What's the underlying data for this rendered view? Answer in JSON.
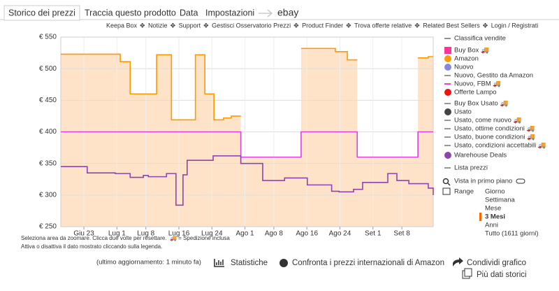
{
  "tabs": [
    "Storico dei prezzi",
    "Traccia questo prodotto",
    "Data",
    "Impostazioni",
    "ebay"
  ],
  "nav": [
    "Keepa Box",
    "Notizie",
    "Support",
    "Gestisci Osservatorio Prezzi",
    "Product Finder",
    "Trova offerte relative",
    "Related Best Sellers",
    "Login / Registrati"
  ],
  "chart_data": {
    "type": "line",
    "step": true,
    "grid": true,
    "area_color": "#ffe3c8",
    "xlim": [
      -5.6,
      84.6
    ],
    "xticks": [
      {
        "value": 0,
        "label": "Giu 23"
      },
      {
        "value": 8,
        "label": "Lug 1"
      },
      {
        "value": 15,
        "label": "Lug 8"
      },
      {
        "value": 23,
        "label": "Lug 16"
      },
      {
        "value": 31,
        "label": "Lug 24"
      },
      {
        "value": 39,
        "label": "Ago 1"
      },
      {
        "value": 46,
        "label": "Ago 8"
      },
      {
        "value": 54,
        "label": "Ago 16"
      },
      {
        "value": 62,
        "label": "Ago 24"
      },
      {
        "value": 70,
        "label": "Set 1"
      },
      {
        "value": 77,
        "label": "Set 8"
      }
    ],
    "ylim": [
      250,
      550
    ],
    "yticks": [
      {
        "value": 250,
        "label": "€ 250"
      },
      {
        "value": 300,
        "label": "€ 300"
      },
      {
        "value": 350,
        "label": "€ 350"
      },
      {
        "value": 400,
        "label": "€ 400"
      },
      {
        "value": 450,
        "label": "€ 450"
      },
      {
        "value": 500,
        "label": "€ 500"
      },
      {
        "value": 550,
        "label": "€ 550"
      }
    ],
    "series": [
      {
        "color": "#ff9900",
        "area": true,
        "x": [
          -5.6,
          8.8,
          11.2,
          17.6,
          21.2,
          27,
          29.3,
          31.5,
          33.8,
          35.7,
          38,
          52.6,
          60.9,
          63.8,
          66.2,
          80.9,
          83.4,
          84.6
        ],
        "values": [
          523,
          511,
          460,
          522,
          419,
          522,
          460,
          419,
          422,
          425,
          null,
          532,
          527,
          514,
          null,
          517,
          519,
          519
        ]
      },
      {
        "color": "#e040e0",
        "area": true,
        "x": [
          -5.6,
          38,
          52.6,
          66.2,
          80.9,
          84.6
        ],
        "values": [
          400,
          360,
          400,
          360,
          400,
          400
        ]
      },
      {
        "color": "#8e44ad",
        "area": false,
        "x": [
          -5.6,
          0.8,
          7.6,
          11.2,
          14.4,
          15.6,
          20,
          22.3,
          24,
          25,
          31.3,
          38,
          43.3,
          46,
          48.6,
          54.1,
          60,
          61.8,
          65.3,
          67.5,
          73.6,
          75.8,
          78.7,
          83.4,
          84.6
        ],
        "values": [
          345,
          335,
          334,
          328,
          331,
          329,
          334,
          284,
          332,
          355,
          362,
          350,
          323,
          323,
          327,
          316,
          306,
          305,
          309,
          320,
          334,
          323,
          318,
          311,
          300
        ]
      }
    ],
    "notes": [
      "Seleziona area da zoomare. Clicca due volte per resettare.",
      "🚚 = Spedizione inclusa",
      "Attiva o disattiva il dato mostrato cliccando sulla legenda."
    ]
  },
  "legend": [
    {
      "label": "Classifica vendite",
      "color": "#8a9a8a",
      "marker": "line"
    },
    {
      "label": "Buy Box 🚚",
      "color": "#ff3399",
      "marker": "square"
    },
    {
      "label": "Amazon",
      "color": "#ff9900",
      "marker": "dot"
    },
    {
      "label": "Nuovo",
      "color": "#8888dd",
      "marker": "dot"
    },
    {
      "label": "Nuovo, Gestito da Amazon",
      "color": "#999999",
      "marker": "line"
    },
    {
      "label": "Nuovo, FBM 🚚",
      "color": "#e040e0",
      "marker": "line"
    },
    {
      "label": "Offerte Lampo",
      "color": "#ee1111",
      "marker": "dot"
    },
    {
      "label": "Buy Box Usato 🚚",
      "color": "#999999",
      "marker": "line"
    },
    {
      "label": "Usato",
      "color": "#444444",
      "marker": "dot"
    },
    {
      "label": "Usato, come nuovo 🚚",
      "color": "#999999",
      "marker": "line"
    },
    {
      "label": "Usato, ottime condizioni 🚚",
      "color": "#999999",
      "marker": "line"
    },
    {
      "label": "Usato, buone condizioni 🚚",
      "color": "#999999",
      "marker": "line"
    },
    {
      "label": "Usato, condizioni accettabili 🚚",
      "color": "#999999",
      "marker": "line"
    },
    {
      "label": "Warehouse Deals",
      "color": "#8e44ad",
      "marker": "dot"
    },
    {
      "label": "Lista prezzi",
      "color": "#999999",
      "marker": "line"
    }
  ],
  "view": {
    "focus": "Vista in primo piano",
    "range_title": "Range",
    "range_options": [
      "Giorno",
      "Settimana",
      "Mese",
      "3 Mesi",
      "Anni",
      "Tutto (1611 giorni)"
    ],
    "selected_range": 3
  },
  "footer": {
    "updated": "(ultimo aggiornamento: 1 minuto fa)",
    "stats": "Statistiche",
    "compare": "Confronta i prezzi internazionali di Amazon",
    "share": "Condividi grafico",
    "more": "Più dati storici"
  }
}
